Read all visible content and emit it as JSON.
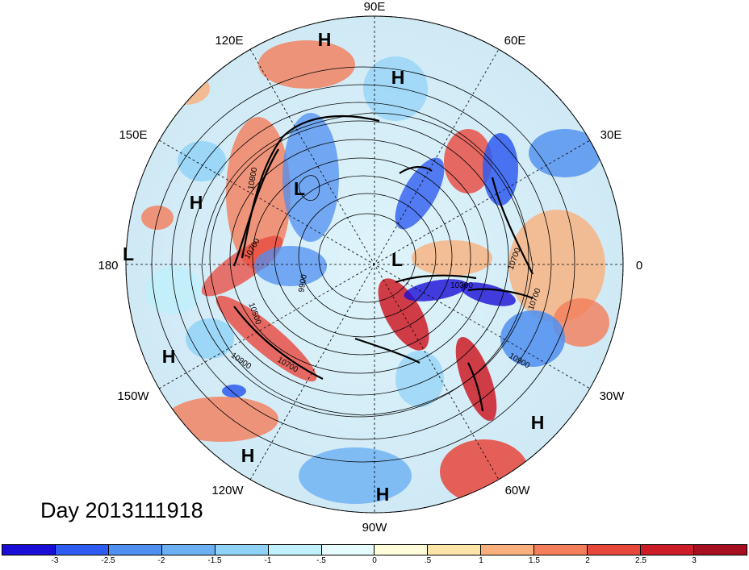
{
  "map": {
    "day_label": "Day 2013111918",
    "longitude_labels": [
      "90E",
      "60E",
      "30E",
      "0",
      "30W",
      "60W",
      "90W",
      "120W",
      "150W",
      "180",
      "150E",
      "120E"
    ],
    "pressure_systems": [
      {
        "type": "H",
        "region": "Siberia north"
      },
      {
        "type": "H",
        "region": "Central Asia"
      },
      {
        "type": "L",
        "region": "Eastern Siberia"
      },
      {
        "type": "H",
        "region": "North Pacific west"
      },
      {
        "type": "L",
        "region": "Dateline"
      },
      {
        "type": "L",
        "region": "North Pole"
      },
      {
        "type": "H",
        "region": "North Pacific southeast"
      },
      {
        "type": "H",
        "region": "Subtropical Pacific"
      },
      {
        "type": "H",
        "region": "Gulf of Mexico"
      },
      {
        "type": "H",
        "region": "Subtropical Atlantic"
      }
    ],
    "contour_labels": [
      "10800",
      "9900",
      "10500",
      "10900",
      "10700",
      "10300",
      "10700",
      "10700",
      "10900",
      "10700"
    ]
  },
  "colorbar": {
    "ticks": [
      "-3",
      "-2.5",
      "-2",
      "-1.5",
      "-1",
      "-.5",
      "0",
      ".5",
      "1",
      "1.5",
      "2",
      "2.5",
      "3"
    ],
    "colors": [
      "#1a0ed6",
      "#2f5cf0",
      "#4f8ff0",
      "#6cb0f4",
      "#8fd2f8",
      "#bff0fc",
      "#e6fcff",
      "#fffcd9",
      "#fde5a8",
      "#f9b07c",
      "#f47d5a",
      "#e8473c",
      "#cc1c27",
      "#a50f20"
    ]
  }
}
